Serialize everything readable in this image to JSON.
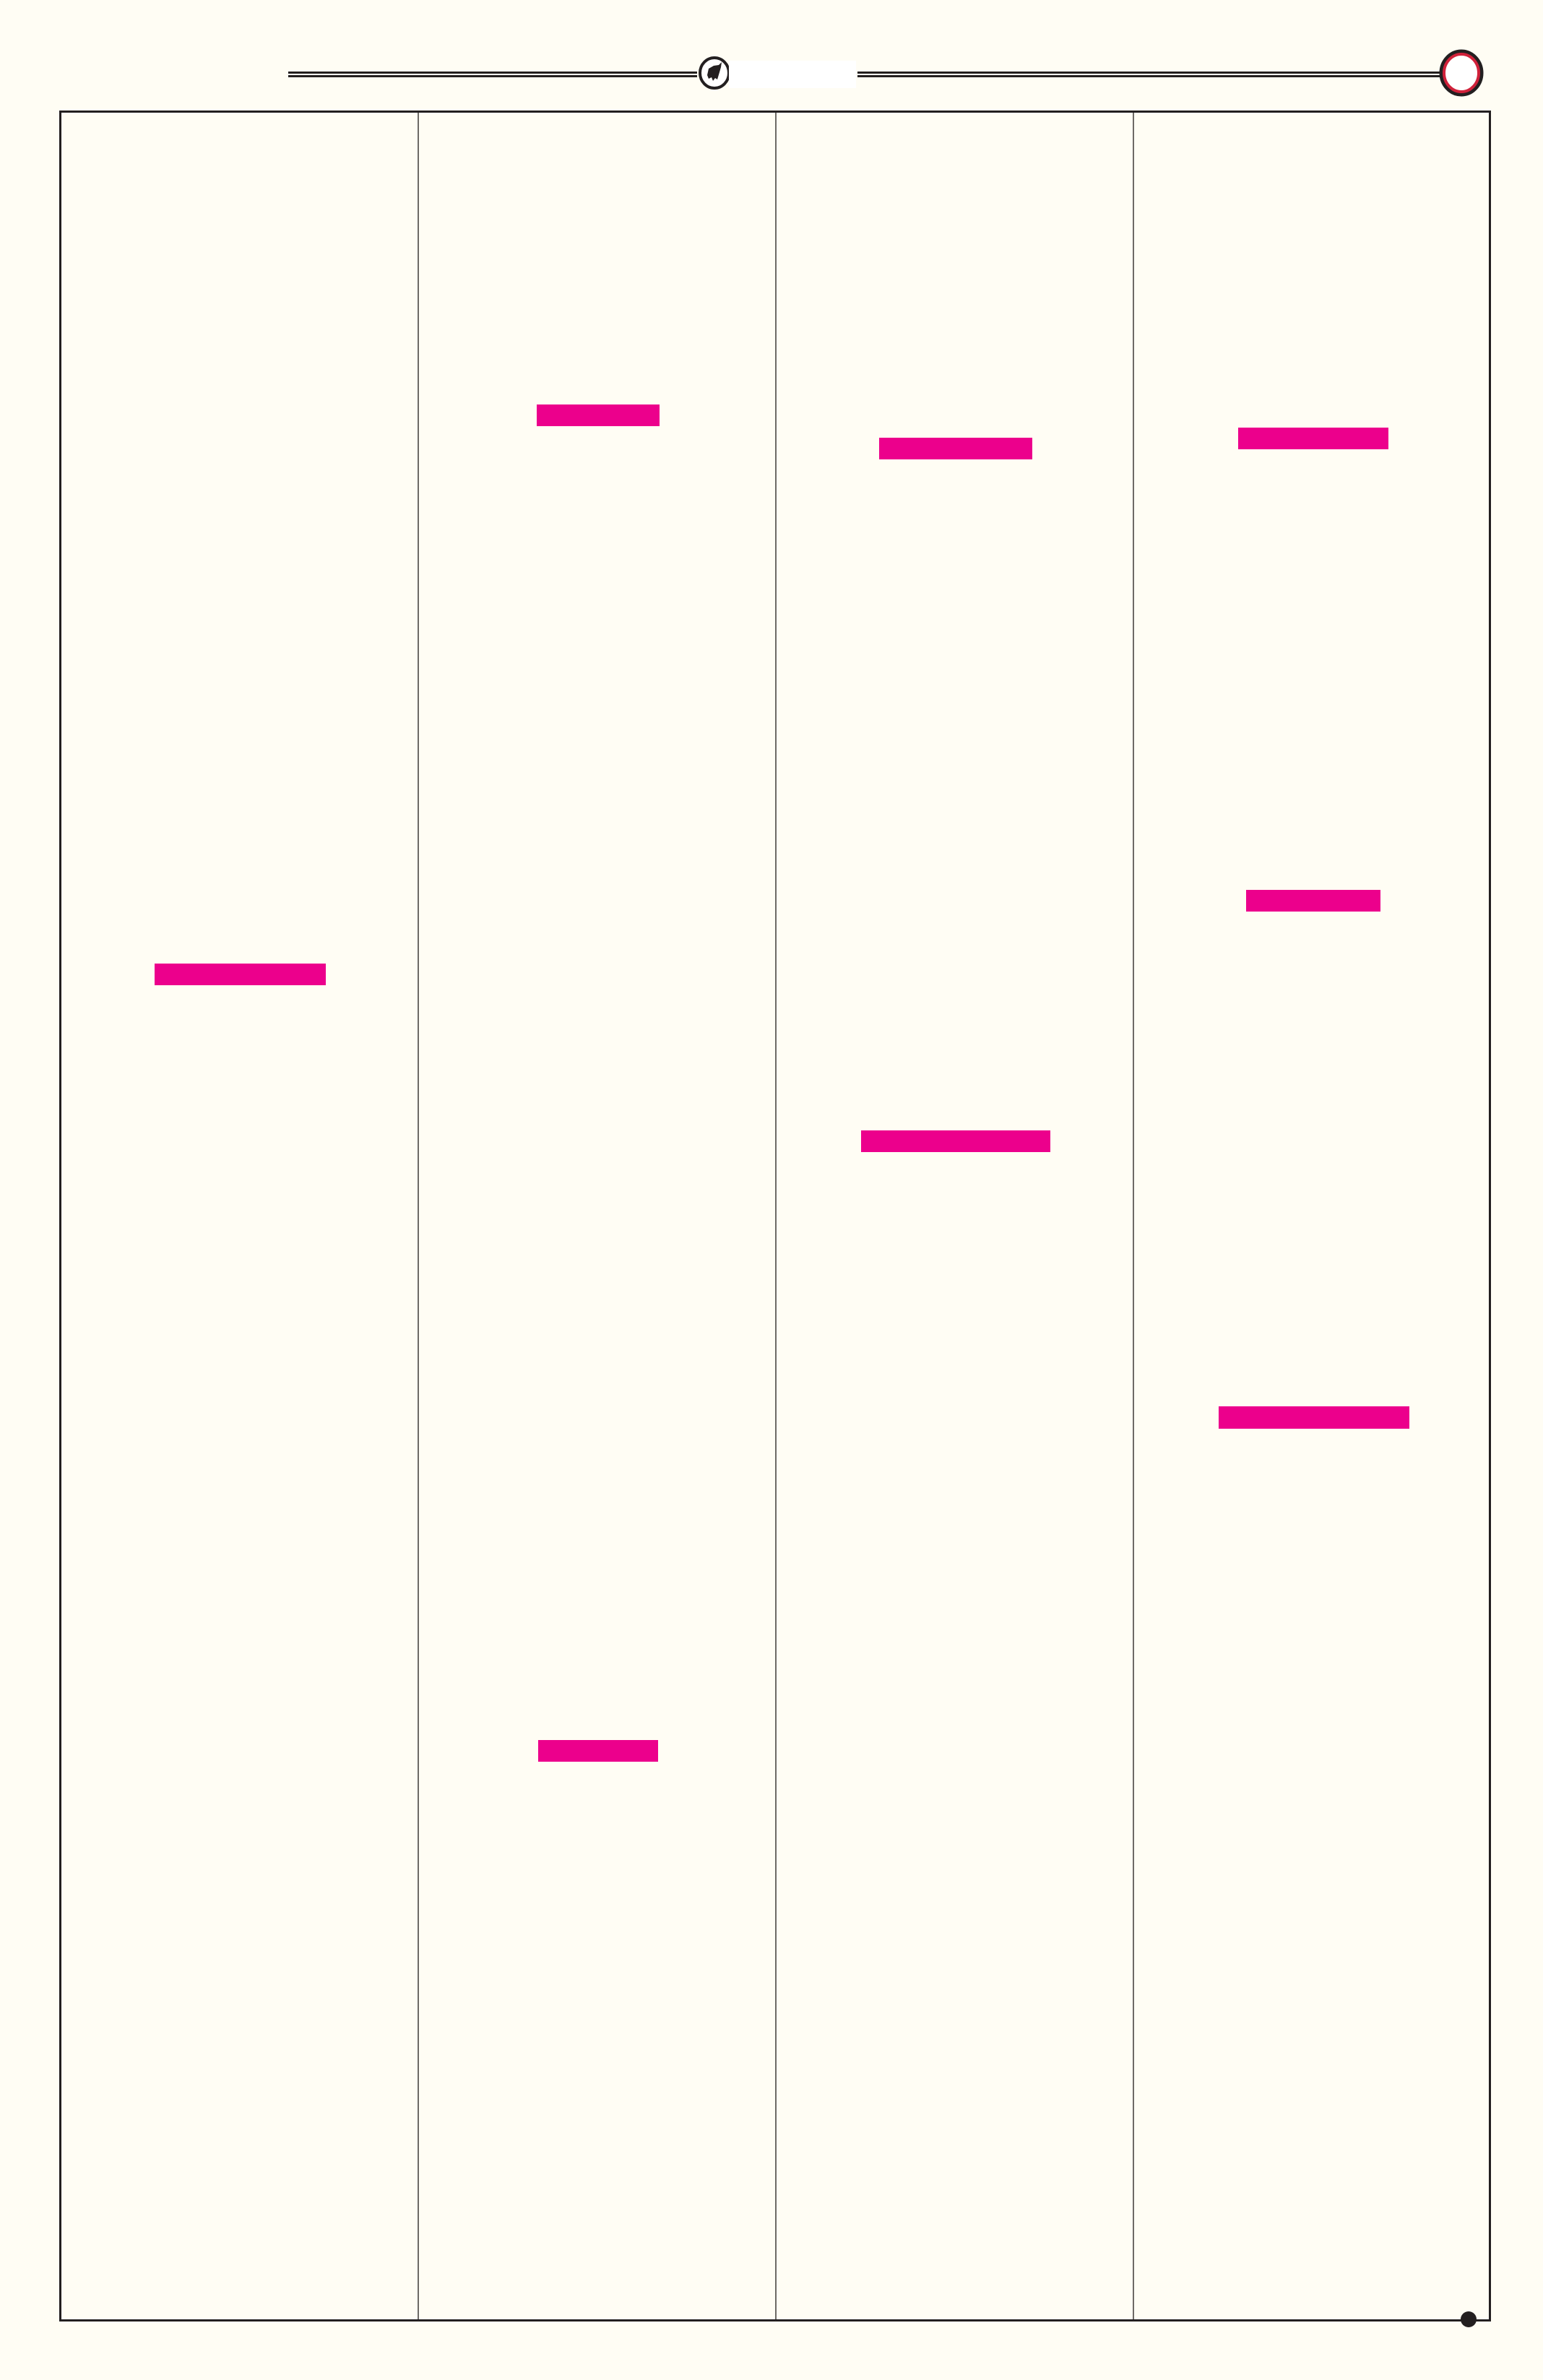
{
  "colors": {
    "background": "#fffdf4",
    "ink": "#231f20",
    "highlight": "#ec008c",
    "badge_ring": "#d0213a"
  },
  "header": {
    "emblem_icon": "bull-emblem-icon",
    "page_badge_icon": "red-ring-icon"
  },
  "columns": 4,
  "highlights": [
    {
      "column": 1,
      "order": 1
    },
    {
      "column": 2,
      "order": 1
    },
    {
      "column": 2,
      "order": 2
    },
    {
      "column": 3,
      "order": 1
    },
    {
      "column": 3,
      "order": 2
    },
    {
      "column": 4,
      "order": 1
    },
    {
      "column": 4,
      "order": 2
    },
    {
      "column": 4,
      "order": 3
    }
  ]
}
